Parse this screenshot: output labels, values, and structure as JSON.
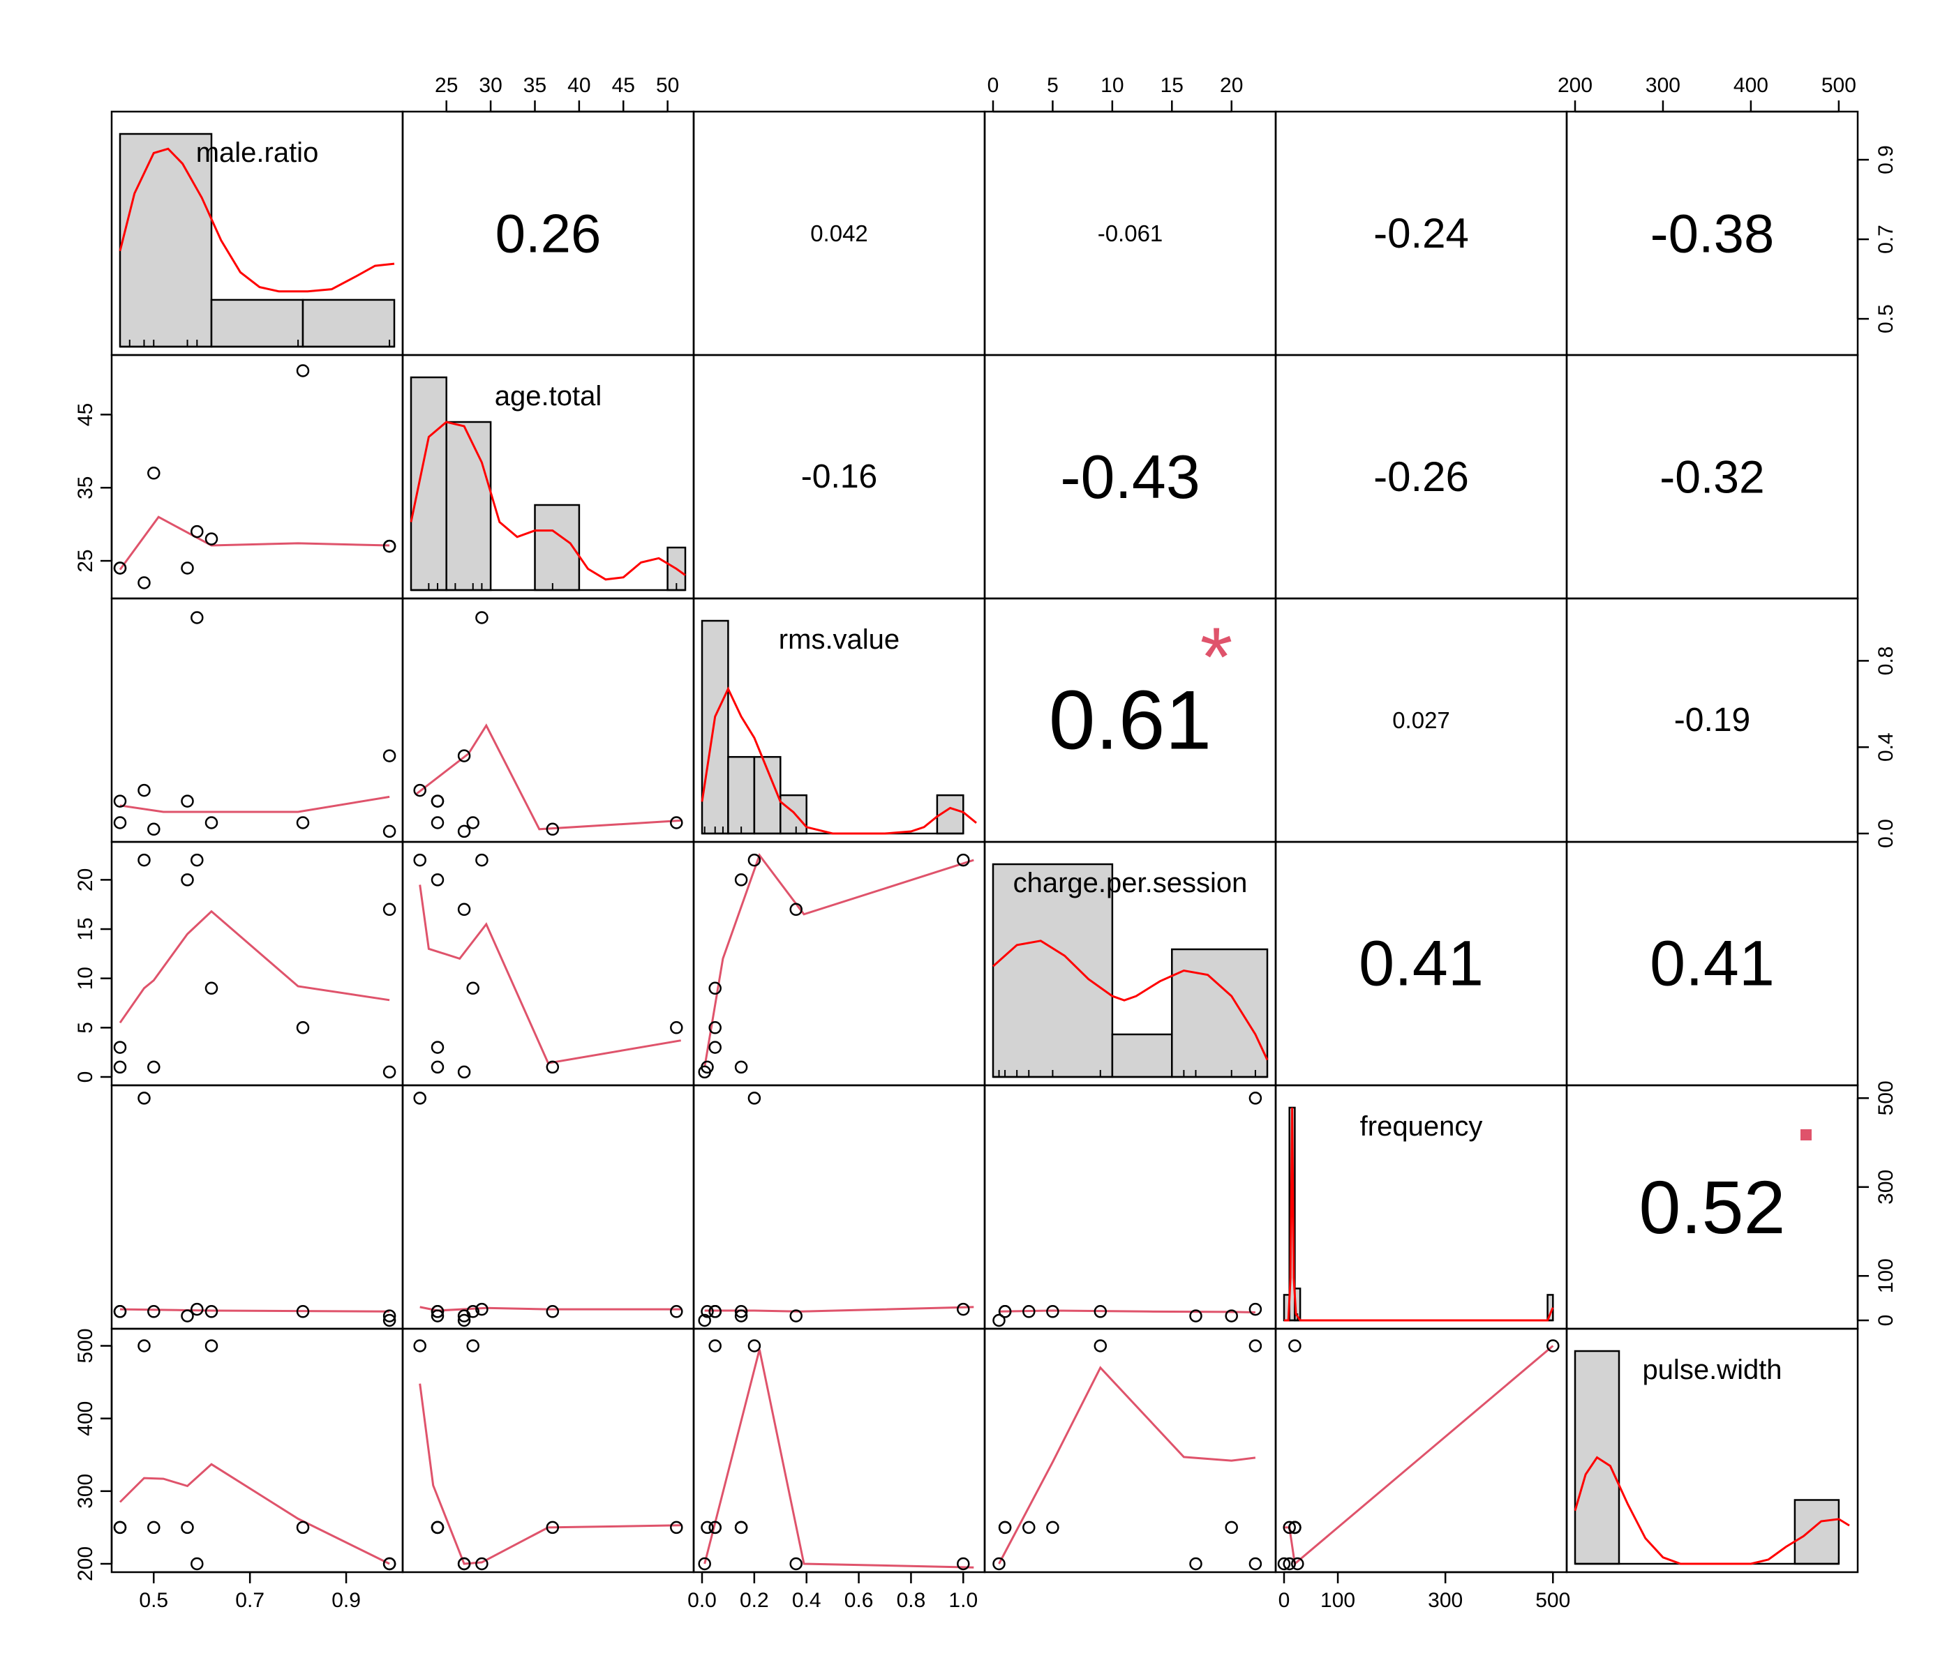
{
  "chart_data": {
    "type": "scatter_matrix",
    "colors": {
      "density": "#ff0000",
      "smooth": "#df536b",
      "significance": "#df536b",
      "hist_fill": "#d3d3d3",
      "stroke": "#000000"
    },
    "variables": [
      {
        "name": "male.ratio",
        "range": [
          0.43,
          1.0
        ],
        "ticks": [
          0.5,
          0.7,
          0.9
        ],
        "tick_labels": [
          "0.5",
          "0.7",
          "0.9"
        ]
      },
      {
        "name": "age.total",
        "range": [
          21,
          52
        ],
        "ticks": [
          25,
          30,
          35,
          40,
          45,
          50
        ],
        "tick_labels": [
          "25",
          "30",
          "35",
          "40",
          "45",
          "50"
        ],
        "left_ticks": [
          25,
          35,
          45
        ],
        "left_tick_labels": [
          "25",
          "35",
          "45"
        ]
      },
      {
        "name": "rms.value",
        "range": [
          0,
          1.05
        ],
        "ticks": [
          0.0,
          0.2,
          0.4,
          0.6,
          0.8,
          1.0
        ],
        "tick_labels": [
          "0.0",
          "0.2",
          "0.4",
          "0.6",
          "0.8",
          "1.0"
        ],
        "right_ticks": [
          0.0,
          0.4,
          0.8
        ],
        "right_tick_labels": [
          "0.0",
          "0.4",
          "0.8"
        ]
      },
      {
        "name": "charge.per.session",
        "range": [
          0,
          23
        ],
        "ticks": [
          0,
          5,
          10,
          15,
          20
        ],
        "tick_labels": [
          "0",
          "5",
          "10",
          "15",
          "20"
        ]
      },
      {
        "name": "frequency",
        "range": [
          0,
          510
        ],
        "ticks": [
          0,
          100,
          300,
          500
        ],
        "tick_labels": [
          "0",
          "100",
          "300",
          "500"
        ]
      },
      {
        "name": "pulse.width",
        "range": [
          200,
          512
        ],
        "ticks": [
          200,
          300,
          400,
          500
        ],
        "tick_labels": [
          "200",
          "300",
          "400",
          "500"
        ]
      }
    ],
    "axes": {
      "bottom": [
        0,
        2,
        4
      ],
      "top": [
        1,
        3,
        5
      ],
      "left": [
        1,
        3,
        5
      ],
      "right": [
        0,
        2,
        4
      ]
    },
    "points": [
      [
        0.43,
        24,
        0.05,
        3,
        20,
        250
      ],
      [
        0.43,
        24,
        0.15,
        1,
        20,
        250
      ],
      [
        0.48,
        22,
        0.2,
        22,
        500,
        500
      ],
      [
        0.5,
        37,
        0.02,
        1,
        20,
        250
      ],
      [
        0.57,
        24,
        0.15,
        20,
        10,
        250
      ],
      [
        0.59,
        29,
        1.0,
        22,
        25,
        200
      ],
      [
        0.62,
        28,
        0.05,
        9,
        20,
        500
      ],
      [
        0.81,
        51,
        0.05,
        5,
        20,
        250
      ],
      [
        0.99,
        27,
        0.36,
        17,
        10,
        200
      ],
      [
        0.99,
        27,
        0.01,
        0.5,
        0,
        200
      ]
    ],
    "smooth": {
      "1-0": [
        [
          0.43,
          23.8
        ],
        [
          0.51,
          31
        ],
        [
          0.62,
          27.1
        ],
        [
          0.8,
          27.4
        ],
        [
          0.99,
          27.1
        ]
      ],
      "2-0": [
        [
          0.43,
          0.13
        ],
        [
          0.52,
          0.1
        ],
        [
          0.8,
          0.1
        ],
        [
          0.99,
          0.17
        ]
      ],
      "3-0": [
        [
          0.43,
          5.5
        ],
        [
          0.48,
          9
        ],
        [
          0.5,
          9.8
        ],
        [
          0.57,
          14.5
        ],
        [
          0.62,
          16.8
        ],
        [
          0.8,
          9.2
        ],
        [
          0.99,
          7.8
        ]
      ],
      "4-0": [
        [
          0.43,
          25
        ],
        [
          0.62,
          22
        ],
        [
          0.99,
          20
        ]
      ],
      "5-0": [
        [
          0.43,
          285
        ],
        [
          0.48,
          318
        ],
        [
          0.52,
          317
        ],
        [
          0.57,
          307
        ],
        [
          0.62,
          337
        ],
        [
          0.8,
          262
        ],
        [
          0.99,
          200
        ]
      ],
      "2-1": [
        [
          21.5,
          0.18
        ],
        [
          27.5,
          0.37
        ],
        [
          29.5,
          0.5
        ],
        [
          35.5,
          0.02
        ],
        [
          51.5,
          0.06
        ]
      ],
      "3-1": [
        [
          22,
          19.5
        ],
        [
          23,
          13
        ],
        [
          26.5,
          12
        ],
        [
          29.5,
          15.5
        ],
        [
          36.5,
          1.4
        ],
        [
          51.5,
          3.7
        ]
      ],
      "4-1": [
        [
          22,
          30
        ],
        [
          24,
          22
        ],
        [
          29.5,
          28
        ],
        [
          36.5,
          25
        ],
        [
          51.5,
          25
        ]
      ],
      "5-1": [
        [
          22,
          448
        ],
        [
          23.5,
          308
        ],
        [
          27,
          200
        ],
        [
          29,
          202
        ],
        [
          36.5,
          250
        ],
        [
          51.5,
          253
        ]
      ],
      "3-2": [
        [
          0.01,
          1.0
        ],
        [
          0.08,
          12
        ],
        [
          0.22,
          22.5
        ],
        [
          0.39,
          16.5
        ],
        [
          1.04,
          22
        ]
      ],
      "4-2": [
        [
          0.01,
          22
        ],
        [
          0.2,
          22
        ],
        [
          0.38,
          20
        ],
        [
          1.04,
          30
        ]
      ],
      "5-2": [
        [
          0.01,
          200
        ],
        [
          0.22,
          495
        ],
        [
          0.39,
          200
        ],
        [
          1.04,
          195
        ]
      ],
      "4-3": [
        [
          0.5,
          20
        ],
        [
          5,
          22
        ],
        [
          13,
          20
        ],
        [
          20,
          19
        ],
        [
          22,
          18
        ]
      ],
      "5-3": [
        [
          0.5,
          200
        ],
        [
          5,
          340
        ],
        [
          9,
          470
        ],
        [
          16,
          347
        ],
        [
          20,
          342
        ],
        [
          22,
          346
        ]
      ],
      "5-4": [
        [
          0,
          250
        ],
        [
          10,
          250
        ],
        [
          20,
          200
        ],
        [
          500,
          500
        ]
      ]
    },
    "correlations": [
      {
        "row": 0,
        "col": 1,
        "label": "0.26",
        "size": 78,
        "stars": ""
      },
      {
        "row": 0,
        "col": 2,
        "label": "0.042",
        "size": 33,
        "stars": ""
      },
      {
        "row": 0,
        "col": 3,
        "label": "-0.061",
        "size": 33,
        "stars": ""
      },
      {
        "row": 0,
        "col": 4,
        "label": "-0.24",
        "size": 60,
        "stars": ""
      },
      {
        "row": 0,
        "col": 5,
        "label": "-0.38",
        "size": 78,
        "stars": ""
      },
      {
        "row": 1,
        "col": 2,
        "label": "-0.16",
        "size": 48,
        "stars": ""
      },
      {
        "row": 1,
        "col": 3,
        "label": "-0.43",
        "size": 88,
        "stars": ""
      },
      {
        "row": 1,
        "col": 4,
        "label": "-0.26",
        "size": 60,
        "stars": ""
      },
      {
        "row": 1,
        "col": 5,
        "label": "-0.32",
        "size": 66,
        "stars": ""
      },
      {
        "row": 2,
        "col": 3,
        "label": "0.61",
        "size": 120,
        "stars": "*"
      },
      {
        "row": 2,
        "col": 4,
        "label": "0.027",
        "size": 33,
        "stars": ""
      },
      {
        "row": 2,
        "col": 5,
        "label": "-0.19",
        "size": 48,
        "stars": ""
      },
      {
        "row": 3,
        "col": 4,
        "label": "0.41",
        "size": 92,
        "stars": ""
      },
      {
        "row": 3,
        "col": 5,
        "label": "0.41",
        "size": 92,
        "stars": ""
      },
      {
        "row": 4,
        "col": 5,
        "label": "0.52",
        "size": 108,
        "stars": "."
      }
    ],
    "histograms": [
      {
        "bins": [
          [
            0.43,
            0.62,
            1.0
          ],
          [
            0.62,
            0.81,
            0.22
          ],
          [
            0.81,
            1.0,
            0.22
          ]
        ],
        "density": [
          [
            0.43,
            0.45
          ],
          [
            0.46,
            0.72
          ],
          [
            0.5,
            0.91
          ],
          [
            0.53,
            0.93
          ],
          [
            0.56,
            0.86
          ],
          [
            0.6,
            0.7
          ],
          [
            0.64,
            0.5
          ],
          [
            0.68,
            0.35
          ],
          [
            0.72,
            0.28
          ],
          [
            0.76,
            0.26
          ],
          [
            0.82,
            0.26
          ],
          [
            0.87,
            0.27
          ],
          [
            0.92,
            0.33
          ],
          [
            0.96,
            0.38
          ],
          [
            1.0,
            0.39
          ]
        ],
        "rug": [
          0.45,
          0.48,
          0.5,
          0.57,
          0.59,
          0.62,
          0.8,
          0.99
        ]
      },
      {
        "bins": [
          [
            21,
            25,
            1.0
          ],
          [
            25,
            30,
            0.79
          ],
          [
            30,
            35,
            0
          ],
          [
            35,
            40,
            0.4
          ],
          [
            40,
            45,
            0
          ],
          [
            45,
            50,
            0
          ],
          [
            50,
            52,
            0.2
          ]
        ],
        "density": [
          [
            21,
            0.32
          ],
          [
            23,
            0.72
          ],
          [
            25,
            0.79
          ],
          [
            27,
            0.77
          ],
          [
            29,
            0.6
          ],
          [
            31,
            0.32
          ],
          [
            33,
            0.25
          ],
          [
            35,
            0.28
          ],
          [
            37,
            0.28
          ],
          [
            39,
            0.22
          ],
          [
            41,
            0.1
          ],
          [
            43,
            0.05
          ],
          [
            45,
            0.06
          ],
          [
            47,
            0.13
          ],
          [
            49,
            0.15
          ],
          [
            51,
            0.1
          ],
          [
            52,
            0.07
          ]
        ],
        "rug": [
          23,
          24,
          26,
          28,
          29,
          37,
          51
        ]
      },
      {
        "bins": [
          [
            0,
            0.1,
            1.0
          ],
          [
            0.1,
            0.2,
            0.36
          ],
          [
            0.2,
            0.3,
            0.36
          ],
          [
            0.3,
            0.4,
            0.18
          ],
          [
            0.4,
            0.5,
            0
          ],
          [
            0.5,
            0.6,
            0
          ],
          [
            0.6,
            0.7,
            0
          ],
          [
            0.7,
            0.8,
            0
          ],
          [
            0.8,
            0.9,
            0
          ],
          [
            0.9,
            1.0,
            0.18
          ]
        ],
        "density": [
          [
            0.0,
            0.15
          ],
          [
            0.05,
            0.55
          ],
          [
            0.1,
            0.68
          ],
          [
            0.15,
            0.55
          ],
          [
            0.2,
            0.45
          ],
          [
            0.25,
            0.3
          ],
          [
            0.3,
            0.15
          ],
          [
            0.35,
            0.1
          ],
          [
            0.4,
            0.03
          ],
          [
            0.5,
            0.0
          ],
          [
            0.7,
            0.0
          ],
          [
            0.8,
            0.01
          ],
          [
            0.85,
            0.03
          ],
          [
            0.9,
            0.08
          ],
          [
            0.95,
            0.12
          ],
          [
            1.0,
            0.1
          ],
          [
            1.05,
            0.05
          ]
        ],
        "rug": [
          0.01,
          0.05,
          0.08,
          0.15,
          0.2,
          0.36
        ]
      },
      {
        "bins": [
          [
            0,
            10,
            1.0
          ],
          [
            10,
            15,
            0.2
          ],
          [
            15,
            23,
            0.6
          ]
        ],
        "density": [
          [
            0,
            0.52
          ],
          [
            2,
            0.62
          ],
          [
            4,
            0.64
          ],
          [
            6,
            0.57
          ],
          [
            8,
            0.46
          ],
          [
            10,
            0.38
          ],
          [
            11,
            0.36
          ],
          [
            12,
            0.38
          ],
          [
            14,
            0.45
          ],
          [
            16,
            0.5
          ],
          [
            18,
            0.48
          ],
          [
            20,
            0.38
          ],
          [
            22,
            0.2
          ],
          [
            23,
            0.08
          ]
        ],
        "rug": [
          0.5,
          1,
          2,
          3,
          5,
          9,
          16,
          17,
          20,
          22
        ]
      },
      {
        "bins": [
          [
            0,
            10,
            0.12
          ],
          [
            10,
            20,
            1.0
          ],
          [
            20,
            30,
            0.15
          ],
          [
            490,
            500,
            0.12
          ]
        ],
        "density": [
          [
            0,
            0
          ],
          [
            8,
            0
          ],
          [
            12,
            0.2
          ],
          [
            15,
            1.0
          ],
          [
            18,
            0.2
          ],
          [
            22,
            0.03
          ],
          [
            30,
            0
          ],
          [
            490,
            0
          ],
          [
            498,
            0.05
          ],
          [
            500,
            0.06
          ]
        ],
        "rug": [
          0,
          10,
          20,
          25,
          500
        ]
      },
      {
        "bins": [
          [
            200,
            250,
            1.0
          ],
          [
            250,
            300,
            0
          ],
          [
            300,
            350,
            0
          ],
          [
            350,
            400,
            0
          ],
          [
            400,
            450,
            0
          ],
          [
            450,
            500,
            0.3
          ]
        ],
        "density": [
          [
            200,
            0.25
          ],
          [
            212,
            0.42
          ],
          [
            225,
            0.5
          ],
          [
            240,
            0.46
          ],
          [
            260,
            0.28
          ],
          [
            280,
            0.12
          ],
          [
            300,
            0.03
          ],
          [
            320,
            0
          ],
          [
            400,
            0
          ],
          [
            420,
            0.02
          ],
          [
            440,
            0.08
          ],
          [
            460,
            0.13
          ],
          [
            480,
            0.2
          ],
          [
            500,
            0.21
          ],
          [
            512,
            0.18
          ]
        ],
        "rug": [
          200,
          250,
          500
        ]
      }
    ]
  }
}
